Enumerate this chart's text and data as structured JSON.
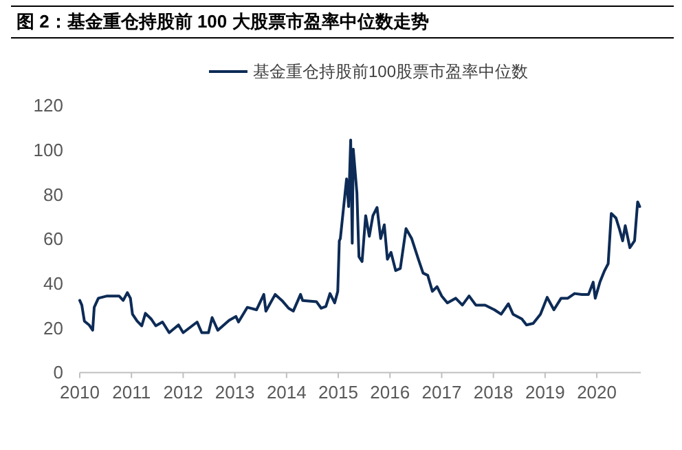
{
  "chart_data": {
    "type": "line",
    "title": "图 2：基金重仓持股前 100 大股票市盈率中位数走势",
    "x": [
      2010.0,
      2010.04,
      2010.09,
      2010.18,
      2010.25,
      2010.28,
      2010.36,
      2010.53,
      2010.76,
      2010.84,
      2010.92,
      2010.98,
      2011.02,
      2011.11,
      2011.2,
      2011.27,
      2011.38,
      2011.47,
      2011.6,
      2011.73,
      2011.91,
      2012.0,
      2012.27,
      2012.36,
      2012.49,
      2012.56,
      2012.67,
      2012.89,
      2013.02,
      2013.07,
      2013.24,
      2013.42,
      2013.56,
      2013.6,
      2013.78,
      2013.91,
      2014.04,
      2014.13,
      2014.27,
      2014.31,
      2014.58,
      2014.67,
      2014.76,
      2014.84,
      2014.93,
      2014.99,
      2015.02,
      2015.04,
      2015.16,
      2015.2,
      2015.24,
      2015.27,
      2015.29,
      2015.36,
      2015.4,
      2015.46,
      2015.53,
      2015.6,
      2015.67,
      2015.75,
      2015.82,
      2015.89,
      2015.95,
      2016.02,
      2016.11,
      2016.2,
      2016.31,
      2016.42,
      2016.55,
      2016.64,
      2016.73,
      2016.82,
      2016.91,
      2017.0,
      2017.11,
      2017.27,
      2017.4,
      2017.53,
      2017.66,
      2017.84,
      2018.02,
      2018.15,
      2018.29,
      2018.38,
      2018.55,
      2018.64,
      2018.77,
      2018.91,
      2019.04,
      2019.17,
      2019.31,
      2019.44,
      2019.57,
      2019.71,
      2019.84,
      2019.93,
      2019.97,
      2020.06,
      2020.15,
      2020.22,
      2020.28,
      2020.37,
      2020.44,
      2020.5,
      2020.55,
      2020.64,
      2020.73,
      2020.79,
      2020.83
    ],
    "series": [
      {
        "name": "基金重仓持股前100股票市盈率中位数",
        "color": "#0d2b56",
        "values": [
          32.4,
          30.3,
          23.1,
          21.4,
          19.0,
          29.3,
          33.4,
          34.4,
          34.4,
          32.4,
          35.9,
          33.4,
          26.2,
          23.1,
          21.0,
          26.6,
          24.1,
          21.0,
          22.7,
          17.9,
          21.4,
          17.9,
          22.7,
          17.9,
          17.9,
          24.7,
          19.0,
          23.5,
          25.2,
          22.7,
          29.3,
          28.2,
          35.1,
          27.6,
          35.1,
          32.4,
          28.9,
          27.6,
          35.1,
          32.4,
          31.8,
          28.9,
          29.7,
          35.5,
          31.3,
          36.5,
          59.2,
          60.2,
          87.0,
          74.6,
          104.5,
          58.1,
          100.4,
          80.8,
          52.0,
          49.9,
          70.5,
          61.2,
          70.5,
          74.2,
          60.2,
          66.4,
          50.9,
          54.0,
          45.8,
          46.8,
          64.7,
          60.2,
          50.9,
          44.7,
          43.7,
          36.5,
          38.6,
          34.4,
          31.3,
          33.4,
          30.3,
          34.4,
          30.3,
          30.3,
          28.2,
          26.2,
          30.9,
          26.2,
          24.1,
          21.4,
          22.1,
          26.2,
          33.8,
          28.2,
          33.4,
          33.4,
          35.5,
          35.1,
          35.1,
          40.6,
          33.4,
          40.6,
          45.8,
          48.9,
          71.5,
          69.5,
          64.3,
          59.2,
          66.0,
          56.1,
          59.2,
          76.7,
          74.6
        ]
      }
    ],
    "xlim": [
      2010,
      2020.85
    ],
    "xticks": [
      2010,
      2011,
      2012,
      2013,
      2014,
      2015,
      2016,
      2017,
      2018,
      2019,
      2020
    ],
    "ylim": [
      0,
      120
    ],
    "yticks": [
      0,
      20,
      40,
      60,
      80,
      100,
      120
    ],
    "legend": "top",
    "grid": false
  }
}
